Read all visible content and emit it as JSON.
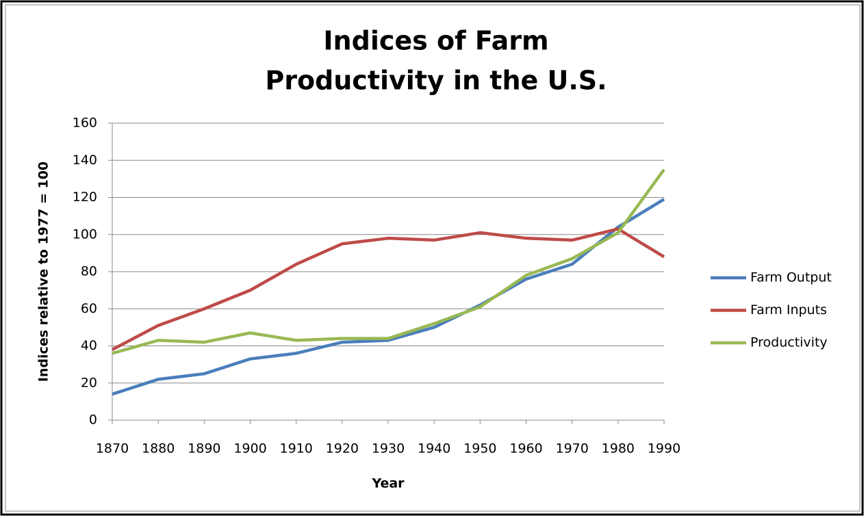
{
  "chart_data": {
    "type": "line",
    "title": [
      "Indices of Farm",
      "Productivity in the U.S."
    ],
    "x_label": "Year",
    "y_label": "Indices relative to 1977 = 100",
    "x": [
      1870,
      1880,
      1890,
      1900,
      1910,
      1920,
      1930,
      1940,
      1950,
      1960,
      1970,
      1980,
      1990
    ],
    "series": [
      {
        "name": "Farm Output",
        "color": "#4a7ebb",
        "values": [
          14,
          22,
          25,
          33,
          36,
          42,
          43,
          50,
          62,
          76,
          84,
          104,
          119
        ]
      },
      {
        "name": "Farm Inputs",
        "color": "#be4b48",
        "values": [
          38,
          51,
          60,
          70,
          84,
          95,
          98,
          97,
          101,
          98,
          97,
          103,
          88
        ]
      },
      {
        "name": "Productivity",
        "color": "#98b954",
        "values": [
          36,
          43,
          42,
          47,
          43,
          44,
          44,
          52,
          61,
          78,
          87,
          101,
          135
        ]
      }
    ],
    "xlim": [
      1870,
      1990
    ],
    "xticks": [
      1870,
      1880,
      1890,
      1900,
      1910,
      1920,
      1930,
      1940,
      1950,
      1960,
      1970,
      1980,
      1990
    ],
    "ylim": [
      0,
      160
    ],
    "yticks": [
      0,
      20,
      40,
      60,
      80,
      100,
      120,
      140,
      160
    ],
    "grid": true,
    "legend": "right"
  }
}
